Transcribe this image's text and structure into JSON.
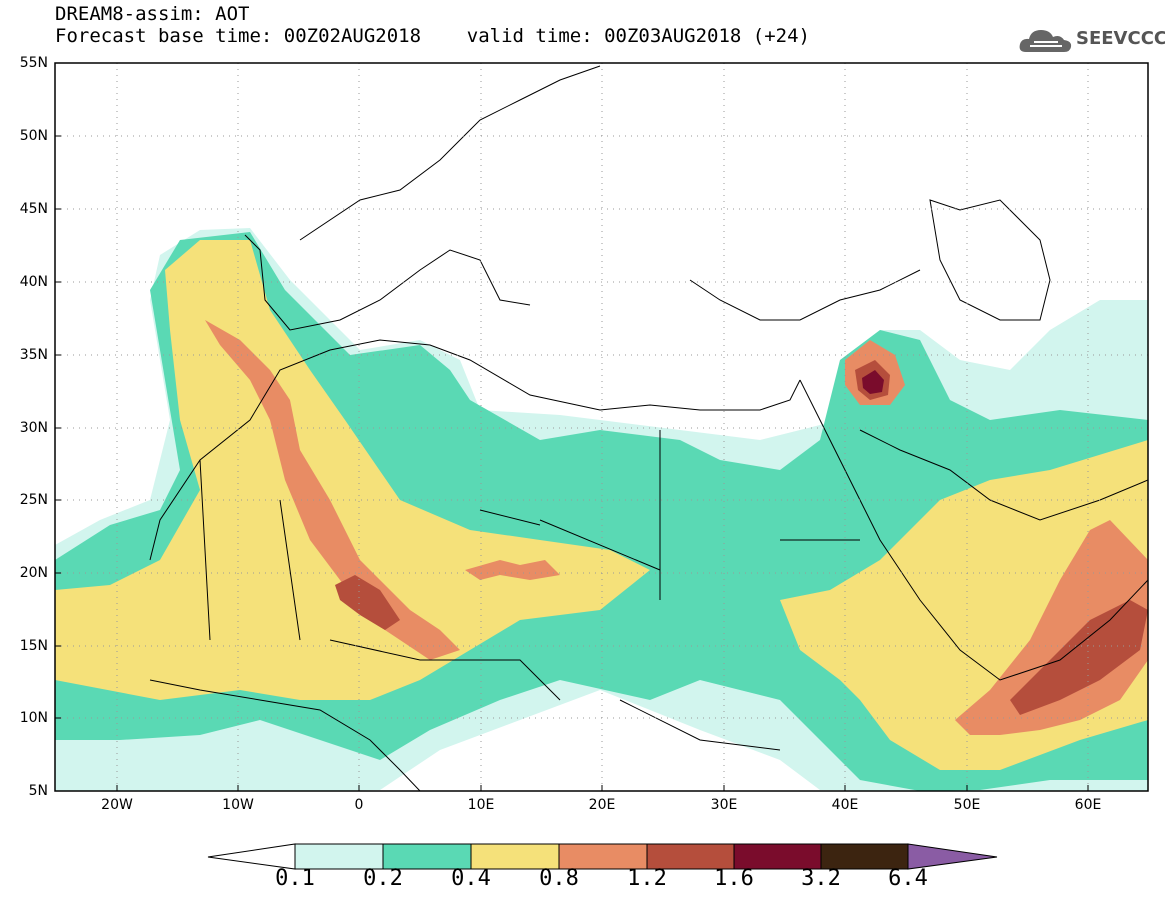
{
  "title": {
    "line1": "DREAM8-assim: AOT",
    "line2": "Forecast base time: 00Z02AUG2018    valid time: 00Z03AUG2018 (+24)"
  },
  "logo": {
    "text": "SEEVCCC",
    "icon": "cloud-icon"
  },
  "map": {
    "lat_labels": [
      "55N",
      "50N",
      "45N",
      "40N",
      "35N",
      "30N",
      "25N",
      "20N",
      "15N",
      "10N",
      "5N"
    ],
    "lon_labels": [
      "20W",
      "10W",
      "0",
      "10E",
      "20E",
      "30E",
      "40E",
      "50E",
      "60E"
    ],
    "extent": {
      "lon": [
        -25,
        65
      ],
      "lat": [
        5,
        55
      ]
    }
  },
  "colorbar": {
    "labels": [
      "0.1",
      "0.2",
      "0.4",
      "0.8",
      "1.2",
      "1.6",
      "3.2",
      "6.4"
    ],
    "colors": [
      "#d2f5ee",
      "#5ad9b4",
      "#f5e17a",
      "#e88c64",
      "#b54e3c",
      "#7a0c2c",
      "#3c2410",
      "#8a5ca4"
    ]
  }
}
